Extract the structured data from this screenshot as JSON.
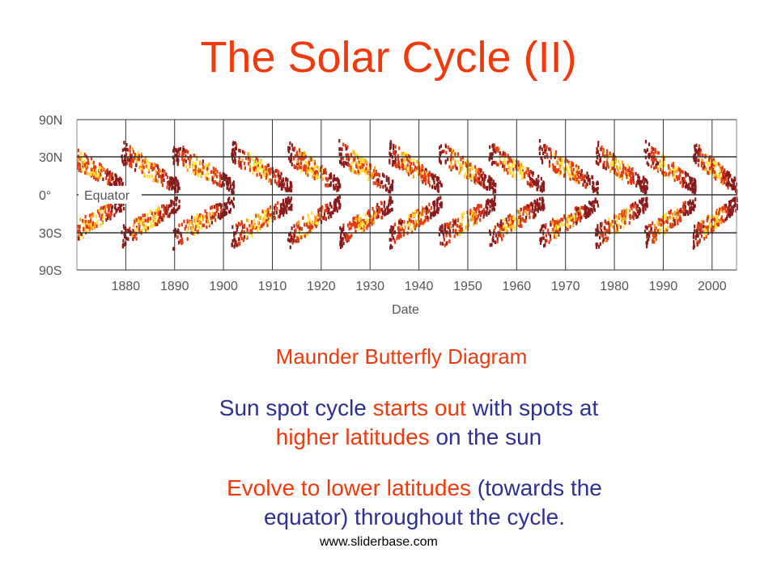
{
  "slide": {
    "title": "The Solar Cycle (II)",
    "caption": "Maunder Butterfly Diagram",
    "para1": {
      "part1": "Sun spot cycle ",
      "part2": "starts out",
      "part3": " with spots at",
      "part4": "higher latitudes",
      "part5": " on the sun"
    },
    "para2": {
      "part1": "Evolve to lower latitudes",
      "part2": " (towards the",
      "part3": "equator) throughout the cycle."
    },
    "footer": "www.sliderbase.com"
  },
  "chart_data": {
    "type": "scatter",
    "xlabel": "Date",
    "ylabel": "",
    "xlim": [
      1870,
      2005
    ],
    "x_ticks": [
      1880,
      1890,
      1900,
      1910,
      1920,
      1930,
      1940,
      1950,
      1960,
      1970,
      1980,
      1990,
      2000
    ],
    "y_ticks": [
      "90N",
      "30N",
      "0°",
      "30S",
      "90S"
    ],
    "annotation": "Equator",
    "colors": {
      "low": "#8b1a1a",
      "mid": "#e23b12",
      "high": "#f7a21b",
      "peak": "#ffe033",
      "grid": "#333333"
    },
    "cycles": [
      {
        "start": 1867.5,
        "end": 1879.5
      },
      {
        "start": 1879.0,
        "end": 1890.8
      },
      {
        "start": 1889.5,
        "end": 1902.0
      },
      {
        "start": 1901.5,
        "end": 1913.8
      },
      {
        "start": 1913.0,
        "end": 1923.8
      },
      {
        "start": 1923.5,
        "end": 1934.5
      },
      {
        "start": 1933.8,
        "end": 1944.5
      },
      {
        "start": 1944.0,
        "end": 1955.5
      },
      {
        "start": 1954.2,
        "end": 1965.5
      },
      {
        "start": 1964.5,
        "end": 1976.5
      },
      {
        "start": 1976.0,
        "end": 1986.6
      },
      {
        "start": 1986.0,
        "end": 1996.5
      },
      {
        "start": 1996.0,
        "end": 2005.0
      }
    ]
  }
}
